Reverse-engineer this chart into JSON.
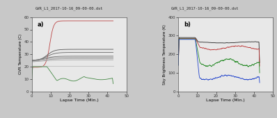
{
  "title": "GVR_L1_2017-10-16_09-00-00.dst",
  "xlabel": "Lapse Time (Min.)",
  "ylabel_a": "GVR Temperature (C)",
  "ylabel_b": "Sky Brightness Temperature (K)",
  "xlim": [
    0,
    50
  ],
  "ylim_a": [
    0,
    60
  ],
  "ylim_b": [
    0,
    400
  ],
  "yticks_a": [
    0,
    10,
    20,
    30,
    40,
    50,
    60
  ],
  "yticks_b": [
    0,
    100,
    200,
    300,
    400
  ],
  "xticks": [
    0,
    10,
    20,
    30,
    40,
    50
  ],
  "label_a": "a)",
  "label_b": "b)",
  "fig_bg": "#c8c8c8",
  "panel_bg": "#e8e8e8"
}
